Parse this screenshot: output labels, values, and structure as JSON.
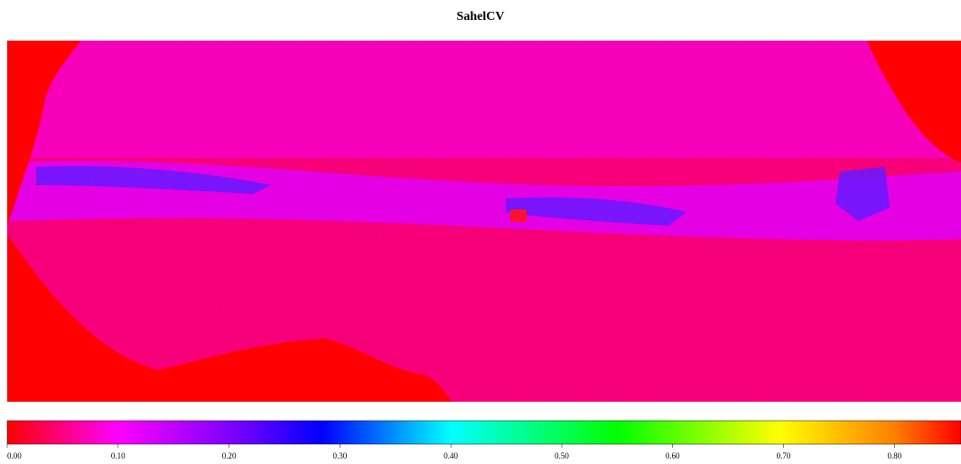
{
  "chart_data": {
    "type": "colorbar-map",
    "title": "SahelCV",
    "clim": [
      0,
      0.86
    ],
    "cticks": [
      {
        "value": 0,
        "label": "0.00"
      },
      {
        "value": 0.1,
        "label": "0.10"
      },
      {
        "value": 0.2,
        "label": "0.20"
      },
      {
        "value": 0.3,
        "label": "0.30"
      },
      {
        "value": 0.4,
        "label": "0.40"
      },
      {
        "value": 0.5,
        "label": "0.50"
      },
      {
        "value": 0.6,
        "label": "0.60"
      },
      {
        "value": 0.7,
        "label": "0.70"
      },
      {
        "value": 0.8,
        "label": "0.80"
      }
    ]
  }
}
